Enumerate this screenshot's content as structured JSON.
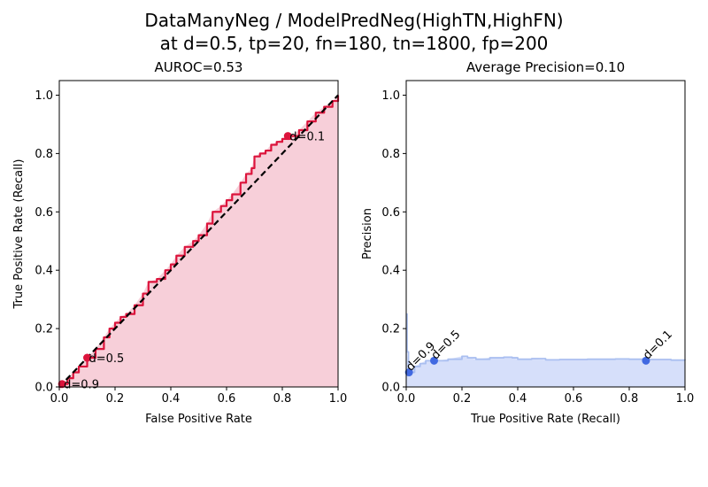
{
  "figure": {
    "suptitle_line1": "DataManyNeg / ModelPredNeg(HighTN,HighFN)",
    "suptitle_line2": "at d=0.5, tp=20, fn=180, tn=1800, fp=200"
  },
  "chart_data": [
    {
      "type": "line",
      "title": "AUROC=0.53",
      "xlabel": "False Positive Rate",
      "ylabel": "True Positive Rate (Recall)",
      "xlim": [
        0,
        1
      ],
      "ylim": [
        0,
        1.05
      ],
      "xticks": [
        "0.0",
        "0.2",
        "0.4",
        "0.6",
        "0.8",
        "1.0"
      ],
      "yticks": [
        "0.0",
        "0.2",
        "0.4",
        "0.6",
        "0.8",
        "1.0"
      ],
      "grid": false,
      "colors": {
        "curve": "#dc143c",
        "fill": "#f7cfd9",
        "diagonal": "#000000"
      },
      "series": [
        {
          "x": [
            0,
            0.01,
            0.03,
            0.05,
            0.07,
            0.1,
            0.13,
            0.16,
            0.18,
            0.2,
            0.22,
            0.24,
            0.27,
            0.3,
            0.32,
            0.35,
            0.38,
            0.4,
            0.42,
            0.45,
            0.48,
            0.5,
            0.53,
            0.55,
            0.58,
            0.6,
            0.62,
            0.65,
            0.67,
            0.69,
            0.7,
            0.72,
            0.74,
            0.76,
            0.78,
            0.8,
            0.83,
            0.86,
            0.89,
            0.92,
            0.95,
            0.98,
            1.0
          ],
          "values": [
            0,
            0.01,
            0.03,
            0.05,
            0.07,
            0.1,
            0.13,
            0.17,
            0.2,
            0.22,
            0.24,
            0.25,
            0.28,
            0.32,
            0.36,
            0.37,
            0.4,
            0.42,
            0.45,
            0.48,
            0.5,
            0.52,
            0.56,
            0.6,
            0.62,
            0.64,
            0.66,
            0.7,
            0.73,
            0.75,
            0.79,
            0.8,
            0.81,
            0.83,
            0.84,
            0.85,
            0.86,
            0.88,
            0.91,
            0.94,
            0.96,
            0.98,
            1.0
          ]
        },
        {
          "x": [
            0,
            1
          ],
          "values": [
            0,
            1
          ]
        }
      ],
      "points": [
        {
          "label": "d=0.1",
          "x": 0.82,
          "y": 0.86
        },
        {
          "label": "d=0.5",
          "x": 0.1,
          "y": 0.1
        },
        {
          "label": "d=0.9",
          "x": 0.01,
          "y": 0.01
        }
      ]
    },
    {
      "type": "area",
      "title": "Average Precision=0.10",
      "xlabel": "True Positive Rate (Recall)",
      "ylabel": "Precision",
      "xlim": [
        0,
        1
      ],
      "ylim": [
        0,
        1.05
      ],
      "xticks": [
        "0.0",
        "0.2",
        "0.4",
        "0.6",
        "0.8",
        "1.0"
      ],
      "yticks": [
        "0.0",
        "0.2",
        "0.4",
        "0.6",
        "0.8",
        "1.0"
      ],
      "grid": false,
      "colors": {
        "curve": "#aabff0",
        "fill": "#d6dffa",
        "points": "#4169e1"
      },
      "series": [
        {
          "x": [
            0,
            0.003,
            0.008,
            0.015,
            0.03,
            0.05,
            0.07,
            0.1,
            0.15,
            0.2,
            0.22,
            0.25,
            0.3,
            0.35,
            0.38,
            0.4,
            0.45,
            0.5,
            0.55,
            0.6,
            0.65,
            0.7,
            0.75,
            0.8,
            0.85,
            0.9,
            0.95,
            1.0
          ],
          "values": [
            0.25,
            0.12,
            0.06,
            0.05,
            0.07,
            0.08,
            0.09,
            0.09,
            0.095,
            0.105,
            0.1,
            0.095,
            0.1,
            0.102,
            0.1,
            0.095,
            0.097,
            0.093,
            0.094,
            0.094,
            0.095,
            0.095,
            0.096,
            0.095,
            0.094,
            0.094,
            0.092,
            0.091
          ]
        }
      ],
      "points": [
        {
          "label": "d=0.9",
          "x": 0.01,
          "y": 0.05
        },
        {
          "label": "d=0.5",
          "x": 0.1,
          "y": 0.09
        },
        {
          "label": "d=0.1",
          "x": 0.86,
          "y": 0.09
        }
      ]
    }
  ]
}
